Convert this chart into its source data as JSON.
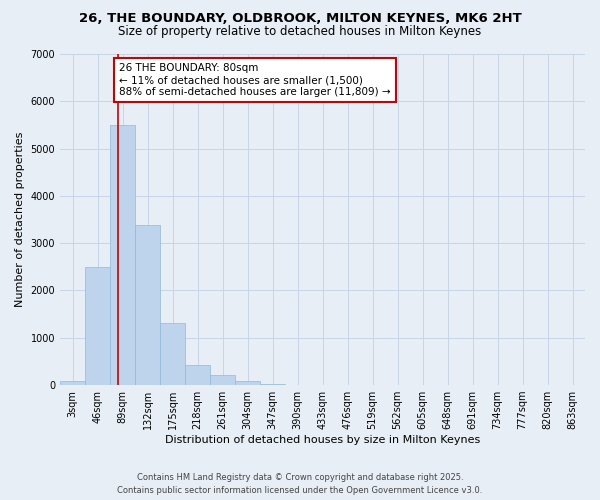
{
  "title_line1": "26, THE BOUNDARY, OLDBROOK, MILTON KEYNES, MK6 2HT",
  "title_line2": "Size of property relative to detached houses in Milton Keynes",
  "xlabel": "Distribution of detached houses by size in Milton Keynes",
  "ylabel": "Number of detached properties",
  "categories": [
    "3sqm",
    "46sqm",
    "89sqm",
    "132sqm",
    "175sqm",
    "218sqm",
    "261sqm",
    "304sqm",
    "347sqm",
    "390sqm",
    "433sqm",
    "476sqm",
    "519sqm",
    "562sqm",
    "605sqm",
    "648sqm",
    "691sqm",
    "734sqm",
    "777sqm",
    "820sqm",
    "863sqm"
  ],
  "values": [
    90,
    2500,
    5500,
    3380,
    1320,
    420,
    210,
    85,
    30,
    8,
    2,
    0,
    0,
    0,
    0,
    0,
    0,
    0,
    0,
    0,
    0
  ],
  "bar_color": "#bed3ec",
  "bar_edge_color": "#92b8da",
  "grid_color": "#c8d4e8",
  "background_color": "#e8eef6",
  "vline_color": "#cc0000",
  "vline_x": 1.8,
  "annotation_title": "26 THE BOUNDARY: 80sqm",
  "annotation_line1": "← 11% of detached houses are smaller (1,500)",
  "annotation_line2": "88% of semi-detached houses are larger (11,809) →",
  "annotation_box_color": "#ffffff",
  "annotation_box_edge_color": "#cc0000",
  "ylim": [
    0,
    7000
  ],
  "yticks": [
    0,
    1000,
    2000,
    3000,
    4000,
    5000,
    6000,
    7000
  ],
  "footer_line1": "Contains HM Land Registry data © Crown copyright and database right 2025.",
  "footer_line2": "Contains public sector information licensed under the Open Government Licence v3.0.",
  "title_fontsize": 9.5,
  "subtitle_fontsize": 8.5,
  "axis_label_fontsize": 8,
  "tick_fontsize": 7,
  "annotation_fontsize": 7.5,
  "footer_fontsize": 6,
  "ylabel_fontsize": 8
}
